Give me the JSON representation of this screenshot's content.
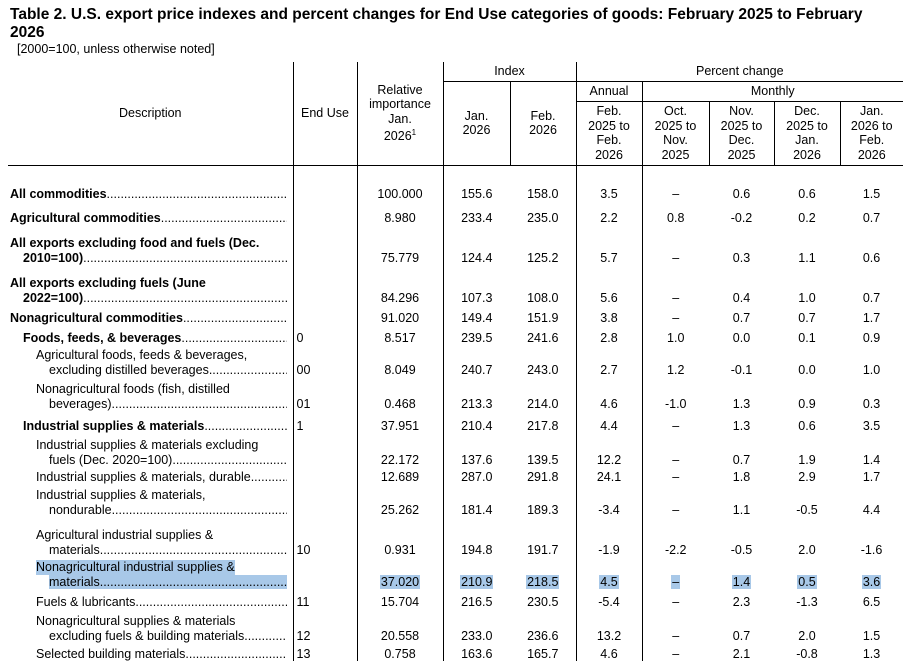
{
  "title": "Table 2. U.S. export price indexes and percent changes for End Use categories of goods: February 2025 to February 2026",
  "note": "[2000=100, unless otherwise noted]",
  "headers": {
    "description": "Description",
    "end_use": "End Use",
    "relative_importance": [
      "Relative",
      "importance",
      "Jan.",
      "2026"
    ],
    "relative_sup": "1",
    "index_group": "Index",
    "jan_2026": [
      "Jan.",
      "2026"
    ],
    "feb_2026": [
      "Feb.",
      "2026"
    ],
    "percent_change_group": "Percent change",
    "annual_group": "Annual",
    "monthly_group": "Monthly",
    "annual_col": [
      "Feb.",
      "2025 to",
      "Feb.",
      "2026"
    ],
    "m1": [
      "Oct.",
      "2025 to",
      "Nov.",
      "2025"
    ],
    "m2": [
      "Nov.",
      "2025 to",
      "Dec.",
      "2025"
    ],
    "m3": [
      "Dec.",
      "2025 to",
      "Jan.",
      "2026"
    ],
    "m4": [
      "Jan.",
      "2026 to",
      "Feb.",
      "2026"
    ]
  },
  "rows": [
    {
      "lines": [
        "All commodities"
      ],
      "level": 0,
      "end_use": "",
      "ri": "100.000",
      "jan": "155.6",
      "feb": "158.0",
      "annual": "3.5",
      "m1": "–",
      "m2": "0.6",
      "m3": "0.6",
      "m4": "1.5"
    },
    {
      "lines": [
        "Agricultural commodities"
      ],
      "level": 0,
      "end_use": "",
      "ri": "8.980",
      "jan": "233.4",
      "feb": "235.0",
      "annual": "2.2",
      "m1": "0.8",
      "m2": "-0.2",
      "m3": "0.2",
      "m4": "0.7"
    },
    {
      "lines": [
        "All exports excluding food and fuels (Dec.",
        "2010=100)"
      ],
      "level": 0,
      "end_use": "",
      "ri": "75.779",
      "jan": "124.4",
      "feb": "125.2",
      "annual": "5.7",
      "m1": "–",
      "m2": "0.3",
      "m3": "1.1",
      "m4": "0.6"
    },
    {
      "lines": [
        "All exports excluding fuels (June",
        "2022=100)"
      ],
      "level": 0,
      "end_use": "",
      "ri": "84.296",
      "jan": "107.3",
      "feb": "108.0",
      "annual": "5.6",
      "m1": "–",
      "m2": "0.4",
      "m3": "1.0",
      "m4": "0.7"
    },
    {
      "lines": [
        "Nonagricultural commodities"
      ],
      "level": 0,
      "end_use": "",
      "ri": "91.020",
      "jan": "149.4",
      "feb": "151.9",
      "annual": "3.8",
      "m1": "–",
      "m2": "0.7",
      "m3": "0.7",
      "m4": "1.7"
    },
    {
      "lines": [
        "Foods, feeds, & beverages"
      ],
      "level": 1,
      "end_use": "0",
      "ri": "8.517",
      "jan": "239.5",
      "feb": "241.6",
      "annual": "2.8",
      "m1": "1.0",
      "m2": "0.0",
      "m3": "0.1",
      "m4": "0.9"
    },
    {
      "lines": [
        "Agricultural foods, feeds & beverages,",
        "excluding distilled beverages"
      ],
      "level": 2,
      "end_use": "00",
      "ri": "8.049",
      "jan": "240.7",
      "feb": "243.0",
      "annual": "2.7",
      "m1": "1.2",
      "m2": "-0.1",
      "m3": "0.0",
      "m4": "1.0"
    },
    {
      "lines": [
        "Nonagricultural foods (fish, distilled",
        "beverages)"
      ],
      "level": 2,
      "end_use": "01",
      "ri": "0.468",
      "jan": "213.3",
      "feb": "214.0",
      "annual": "4.6",
      "m1": "-1.0",
      "m2": "1.3",
      "m3": "0.9",
      "m4": "0.3"
    },
    {
      "lines": [
        "Industrial supplies & materials"
      ],
      "level": 1,
      "end_use": "1",
      "ri": "37.951",
      "jan": "210.4",
      "feb": "217.8",
      "annual": "4.4",
      "m1": "–",
      "m2": "1.3",
      "m3": "0.6",
      "m4": "3.5"
    },
    {
      "lines": [
        "Industrial supplies & materials excluding",
        "fuels (Dec. 2020=100)"
      ],
      "level": 2,
      "end_use": "",
      "ri": "22.172",
      "jan": "137.6",
      "feb": "139.5",
      "annual": "12.2",
      "m1": "–",
      "m2": "0.7",
      "m3": "1.9",
      "m4": "1.4"
    },
    {
      "lines": [
        "Industrial supplies & materials, durable"
      ],
      "level": 2,
      "end_use": "",
      "ri": "12.689",
      "jan": "287.0",
      "feb": "291.8",
      "annual": "24.1",
      "m1": "–",
      "m2": "1.8",
      "m3": "2.9",
      "m4": "1.7"
    },
    {
      "lines": [
        "Industrial supplies & materials,",
        "nondurable"
      ],
      "level": 2,
      "end_use": "",
      "ri": "25.262",
      "jan": "181.4",
      "feb": "189.3",
      "annual": "-3.4",
      "m1": "–",
      "m2": "1.1",
      "m3": "-0.5",
      "m4": "4.4",
      "extra_space": true
    },
    {
      "lines": [
        "Agricultural industrial supplies &",
        "materials"
      ],
      "level": 2,
      "end_use": "10",
      "ri": "0.931",
      "jan": "194.8",
      "feb": "191.7",
      "annual": "-1.9",
      "m1": "-2.2",
      "m2": "-0.5",
      "m3": "2.0",
      "m4": "-1.6"
    },
    {
      "lines": [
        "Nonagricultural industrial supplies &",
        "materials"
      ],
      "level": 2,
      "end_use": "",
      "ri": "37.020",
      "jan": "210.9",
      "feb": "218.5",
      "annual": "4.5",
      "m1": "–",
      "m2": "1.4",
      "m3": "0.5",
      "m4": "3.6",
      "highlight": true
    },
    {
      "lines": [
        "Fuels & lubricants"
      ],
      "level": 2,
      "end_use": "11",
      "ri": "15.704",
      "jan": "216.5",
      "feb": "230.5",
      "annual": "-5.4",
      "m1": "–",
      "m2": "2.3",
      "m3": "-1.3",
      "m4": "6.5"
    },
    {
      "lines": [
        "Nonagricultural supplies & materials",
        "excluding fuels & building materials"
      ],
      "level": 2,
      "end_use": "12",
      "ri": "20.558",
      "jan": "233.0",
      "feb": "236.6",
      "annual": "13.2",
      "m1": "–",
      "m2": "0.7",
      "m3": "2.0",
      "m4": "1.5"
    },
    {
      "lines": [
        "Selected building materials"
      ],
      "level": 2,
      "end_use": "13",
      "ri": "0.758",
      "jan": "163.6",
      "feb": "165.7",
      "annual": "4.6",
      "m1": "–",
      "m2": "2.1",
      "m3": "-0.8",
      "m4": "1.3"
    }
  ],
  "colors": {
    "highlight": "#a8c8e8",
    "text": "#000000",
    "rule": "#000000"
  }
}
